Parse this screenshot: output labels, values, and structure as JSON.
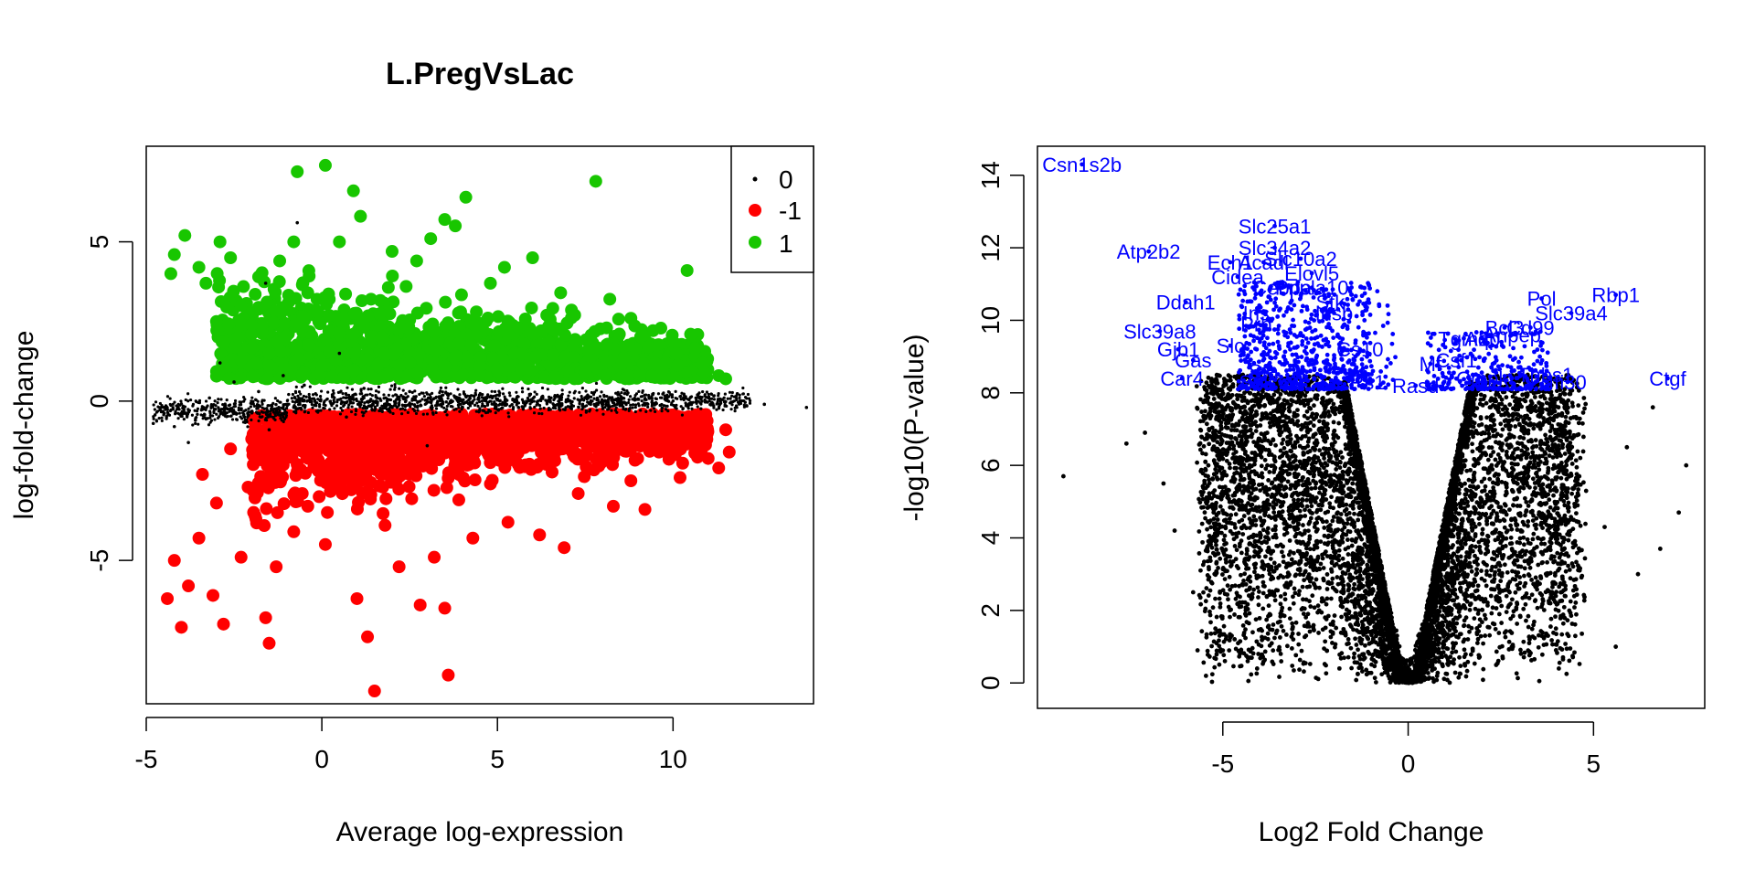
{
  "chart_data": [
    {
      "type": "scatter",
      "title": "L.PregVsLac",
      "xlabel": "Average log-expression",
      "ylabel": "log-fold-change",
      "xlim": [
        -5,
        14
      ],
      "ylim": [
        -9.5,
        8
      ],
      "x_ticks": [
        -5,
        0,
        5,
        10
      ],
      "y_ticks": [
        -5,
        0,
        5
      ],
      "grid": false,
      "legend_position": "top-right",
      "legend": [
        {
          "label": "0",
          "color": "#000000",
          "marker": "small-dot"
        },
        {
          "label": "-1",
          "color": "#ff0000",
          "marker": "dot"
        },
        {
          "label": "1",
          "color": "#18c600",
          "marker": "dot"
        }
      ],
      "series": [
        {
          "name": "0",
          "color": "#000000",
          "points": [
            [
              -4.8,
              -0.7
            ],
            [
              -4.2,
              -0.8
            ],
            [
              -3.6,
              -0.6
            ],
            [
              -3.2,
              0.1
            ],
            [
              -2.8,
              -0.4
            ],
            [
              -2.5,
              0.6
            ],
            [
              -2.2,
              -0.5
            ],
            [
              -1.8,
              0.3
            ],
            [
              -1.5,
              -0.9
            ],
            [
              -1.1,
              0.8
            ],
            [
              -0.8,
              -0.2
            ],
            [
              -0.5,
              0.5
            ],
            [
              -0.1,
              -0.3
            ],
            [
              0.3,
              0.2
            ],
            [
              0.7,
              -0.5
            ],
            [
              1.2,
              0.4
            ],
            [
              1.8,
              -0.2
            ],
            [
              2.5,
              0.3
            ],
            [
              3.4,
              -0.1
            ],
            [
              4.5,
              0.2
            ],
            [
              5.6,
              -0.2
            ],
            [
              6.8,
              0.1
            ],
            [
              8.0,
              -0.1
            ],
            [
              9.2,
              0.05
            ],
            [
              10.3,
              0.1
            ],
            [
              11.4,
              0.05
            ],
            [
              12.1,
              -0.15
            ],
            [
              12.6,
              -0.1
            ],
            [
              13.8,
              -0.2
            ],
            [
              -2.9,
              1.2
            ],
            [
              -3.8,
              -1.3
            ],
            [
              -0.7,
              5.6
            ],
            [
              -1.6,
              3.7
            ],
            [
              0.5,
              1.5
            ],
            [
              3.0,
              -1.4
            ]
          ]
        },
        {
          "name": "-1",
          "color": "#ff0000",
          "points": [
            [
              -4.4,
              -6.2
            ],
            [
              -4.2,
              -5.0
            ],
            [
              -4.0,
              -7.1
            ],
            [
              -3.8,
              -5.8
            ],
            [
              -3.5,
              -4.3
            ],
            [
              -3.4,
              -2.3
            ],
            [
              -3.1,
              -6.1
            ],
            [
              -3.0,
              -3.2
            ],
            [
              -2.8,
              -7.0
            ],
            [
              -2.6,
              -1.5
            ],
            [
              -2.3,
              -4.9
            ],
            [
              -2.1,
              -2.7
            ],
            [
              -1.9,
              -3.6
            ],
            [
              -1.6,
              -6.8
            ],
            [
              -1.5,
              -7.6
            ],
            [
              -1.3,
              -5.2
            ],
            [
              -1.1,
              -2.0
            ],
            [
              -0.8,
              -4.1
            ],
            [
              -0.6,
              -1.2
            ],
            [
              -0.4,
              -3.3
            ],
            [
              0.1,
              -4.5
            ],
            [
              0.4,
              -2.6
            ],
            [
              0.8,
              -1.6
            ],
            [
              1.0,
              -6.2
            ],
            [
              1.3,
              -7.4
            ],
            [
              1.5,
              -9.1
            ],
            [
              1.8,
              -3.9
            ],
            [
              2.2,
              -5.2
            ],
            [
              2.5,
              -2.3
            ],
            [
              2.8,
              -6.4
            ],
            [
              3.2,
              -4.9
            ],
            [
              3.5,
              -6.5
            ],
            [
              3.6,
              -8.6
            ],
            [
              3.9,
              -3.1
            ],
            [
              4.3,
              -4.3
            ],
            [
              4.8,
              -2.6
            ],
            [
              5.3,
              -3.8
            ],
            [
              5.8,
              -2.0
            ],
            [
              6.2,
              -4.2
            ],
            [
              6.9,
              -4.6
            ],
            [
              7.3,
              -2.9
            ],
            [
              7.8,
              -1.8
            ],
            [
              8.3,
              -3.3
            ],
            [
              8.8,
              -2.5
            ],
            [
              9.2,
              -3.4
            ],
            [
              9.6,
              -1.6
            ],
            [
              10.0,
              -1.3
            ],
            [
              10.2,
              -2.4
            ],
            [
              10.7,
              -0.7
            ],
            [
              11.0,
              -1.8
            ],
            [
              11.3,
              -2.1
            ],
            [
              11.5,
              -0.9
            ],
            [
              11.6,
              -1.6
            ],
            [
              0.0,
              -1.0
            ],
            [
              2.0,
              -1.1
            ],
            [
              4.0,
              -1.0
            ],
            [
              6.0,
              -0.9
            ],
            [
              8.0,
              -0.8
            ]
          ]
        },
        {
          "name": "1",
          "color": "#18c600",
          "points": [
            [
              -4.3,
              4.0
            ],
            [
              -4.2,
              4.6
            ],
            [
              -3.9,
              5.2
            ],
            [
              -3.5,
              4.2
            ],
            [
              -3.3,
              3.7
            ],
            [
              -3.0,
              2.5
            ],
            [
              -2.9,
              5.0
            ],
            [
              -2.6,
              4.5
            ],
            [
              -2.3,
              3.0
            ],
            [
              -2.0,
              2.1
            ],
            [
              -1.8,
              3.9
            ],
            [
              -1.5,
              1.5
            ],
            [
              -1.2,
              4.4
            ],
            [
              -0.8,
              5.0
            ],
            [
              -0.7,
              7.2
            ],
            [
              -0.4,
              3.4
            ],
            [
              0.1,
              7.4
            ],
            [
              0.2,
              2.2
            ],
            [
              0.5,
              5.0
            ],
            [
              0.9,
              6.6
            ],
            [
              1.1,
              5.8
            ],
            [
              1.4,
              3.2
            ],
            [
              1.7,
              2.0
            ],
            [
              2.0,
              4.7
            ],
            [
              2.4,
              3.6
            ],
            [
              2.7,
              4.4
            ],
            [
              3.1,
              5.1
            ],
            [
              3.5,
              5.7
            ],
            [
              3.8,
              5.5
            ],
            [
              4.1,
              6.4
            ],
            [
              4.4,
              2.8
            ],
            [
              4.8,
              3.7
            ],
            [
              5.2,
              4.2
            ],
            [
              5.6,
              2.3
            ],
            [
              6.0,
              4.5
            ],
            [
              6.4,
              1.8
            ],
            [
              6.8,
              3.4
            ],
            [
              7.2,
              2.7
            ],
            [
              7.8,
              6.9
            ],
            [
              8.2,
              3.2
            ],
            [
              8.8,
              2.6
            ],
            [
              9.3,
              1.7
            ],
            [
              9.8,
              1.2
            ],
            [
              10.1,
              1.5
            ],
            [
              10.4,
              4.1
            ],
            [
              10.5,
              2.1
            ],
            [
              10.9,
              0.9
            ],
            [
              11.3,
              0.8
            ],
            [
              11.5,
              0.7
            ],
            [
              0.0,
              1.1
            ],
            [
              2.5,
              1.2
            ],
            [
              5.0,
              1.0
            ],
            [
              7.5,
              0.9
            ]
          ]
        }
      ]
    },
    {
      "type": "scatter",
      "title": "",
      "xlabel": "Log2 Fold Change",
      "ylabel": "-log10(P-value)",
      "xlim": [
        -10,
        8
      ],
      "ylim": [
        -0.7,
        14.8
      ],
      "x_ticks": [
        -5,
        0,
        5
      ],
      "y_ticks": [
        0,
        2,
        4,
        6,
        8,
        10,
        12,
        14
      ],
      "grid": false,
      "point_color": "#000000",
      "label_color": "#0000ff",
      "points": [
        [
          -9.3,
          5.7
        ],
        [
          -7.6,
          6.6
        ],
        [
          -7.1,
          6.9
        ],
        [
          -6.6,
          5.5
        ],
        [
          -6.3,
          4.2
        ],
        [
          -5.8,
          2.5
        ],
        [
          -5.6,
          3.1
        ],
        [
          -5.4,
          5.7
        ],
        [
          -5.2,
          1.5
        ],
        [
          -4.6,
          5.0
        ],
        [
          -4.3,
          4.0
        ],
        [
          -3.8,
          7.3
        ],
        [
          -3.5,
          2.9
        ],
        [
          -3.3,
          5.2
        ],
        [
          -3.1,
          1.2
        ],
        [
          -2.9,
          7.9
        ],
        [
          -2.6,
          3.4
        ],
        [
          -2.4,
          2.0
        ],
        [
          -2.1,
          6.2
        ],
        [
          -1.9,
          4.7
        ],
        [
          -1.7,
          1.4
        ],
        [
          -1.5,
          5.5
        ],
        [
          -1.3,
          3.1
        ],
        [
          -1.1,
          2.2
        ],
        [
          -0.9,
          1.4
        ],
        [
          -0.7,
          0.9
        ],
        [
          -0.5,
          0.5
        ],
        [
          -0.3,
          0.2
        ],
        [
          0.0,
          0.0
        ],
        [
          0.3,
          0.2
        ],
        [
          0.5,
          0.6
        ],
        [
          0.7,
          1.0
        ],
        [
          0.9,
          1.6
        ],
        [
          1.1,
          2.3
        ],
        [
          1.3,
          3.0
        ],
        [
          1.5,
          4.2
        ],
        [
          1.7,
          5.1
        ],
        [
          1.9,
          2.0
        ],
        [
          2.1,
          6.3
        ],
        [
          2.4,
          3.5
        ],
        [
          2.7,
          7.1
        ],
        [
          3.0,
          2.6
        ],
        [
          3.3,
          5.0
        ],
        [
          3.6,
          1.3
        ],
        [
          3.9,
          6.4
        ],
        [
          4.2,
          4.0
        ],
        [
          4.6,
          3.2
        ],
        [
          5.3,
          4.3
        ],
        [
          5.6,
          1.0
        ],
        [
          5.9,
          6.5
        ],
        [
          6.2,
          3.0
        ],
        [
          6.6,
          7.6
        ],
        [
          6.8,
          3.7
        ],
        [
          7.3,
          4.7
        ],
        [
          7.5,
          6.0
        ]
      ],
      "labels": [
        {
          "text": "Csn1s2b",
          "x": -8.8,
          "y": 14.3
        },
        {
          "text": "Slc25a1",
          "x": -3.6,
          "y": 12.6
        },
        {
          "text": "Slc34a2",
          "x": -3.6,
          "y": 12.0
        },
        {
          "text": "Atp2b2",
          "x": -7.0,
          "y": 11.9
        },
        {
          "text": "Ech1",
          "x": -4.8,
          "y": 11.6
        },
        {
          "text": "Acadl",
          "x": -3.9,
          "y": 11.6
        },
        {
          "text": "Slc10a2",
          "x": -2.9,
          "y": 11.7
        },
        {
          "text": "Elovl5",
          "x": -2.6,
          "y": 11.3
        },
        {
          "text": "Cidea",
          "x": -4.6,
          "y": 11.2
        },
        {
          "text": "Cebpa",
          "x": -3.4,
          "y": 10.9
        },
        {
          "text": "Pnpla10",
          "x": -2.6,
          "y": 10.9
        },
        {
          "text": "Ddah1",
          "x": -6.0,
          "y": 10.5
        },
        {
          "text": "Stk",
          "x": -2.1,
          "y": 10.5
        },
        {
          "text": "Insb",
          "x": -2.0,
          "y": 10.2
        },
        {
          "text": "Ins",
          "x": -4.1,
          "y": 10.2
        },
        {
          "text": "Prb",
          "x": -4.1,
          "y": 9.9
        },
        {
          "text": "Slc39a8",
          "x": -6.7,
          "y": 9.7
        },
        {
          "text": "Gjb1",
          "x": -6.2,
          "y": 9.2
        },
        {
          "text": "Slc",
          "x": -4.8,
          "y": 9.3
        },
        {
          "text": "Gas",
          "x": -5.8,
          "y": 8.9
        },
        {
          "text": "Cs10",
          "x": -1.3,
          "y": 9.2
        },
        {
          "text": "Sfa",
          "x": -3.9,
          "y": 8.6
        },
        {
          "text": "Car4",
          "x": -6.1,
          "y": 8.4
        },
        {
          "text": "Sult",
          "x": -4.1,
          "y": 8.3
        },
        {
          "text": "Rs1",
          "x": -1.1,
          "y": 8.3
        },
        {
          "text": "Pol",
          "x": 3.6,
          "y": 10.6
        },
        {
          "text": "Rbp1",
          "x": 5.6,
          "y": 10.7
        },
        {
          "text": "Slc39a4",
          "x": 4.4,
          "y": 10.2
        },
        {
          "text": "Bcl3",
          "x": 2.6,
          "y": 9.8
        },
        {
          "text": "Cd99",
          "x": 3.3,
          "y": 9.8
        },
        {
          "text": "Tgm2",
          "x": 1.5,
          "y": 9.5
        },
        {
          "text": "Aqp",
          "x": 2.0,
          "y": 9.5
        },
        {
          "text": "Anpep",
          "x": 2.8,
          "y": 9.6
        },
        {
          "text": "Mf",
          "x": 0.6,
          "y": 8.8
        },
        {
          "text": "Csf1",
          "x": 1.3,
          "y": 8.9
        },
        {
          "text": "Thbs1",
          "x": 3.7,
          "y": 8.5
        },
        {
          "text": "Ifi30",
          "x": 4.3,
          "y": 8.3
        },
        {
          "text": "Cmpk",
          "x": 2.0,
          "y": 8.4
        },
        {
          "text": "Rasd",
          "x": 0.2,
          "y": 8.2
        },
        {
          "text": "Ctgf",
          "x": 7.0,
          "y": 8.4
        }
      ]
    }
  ]
}
